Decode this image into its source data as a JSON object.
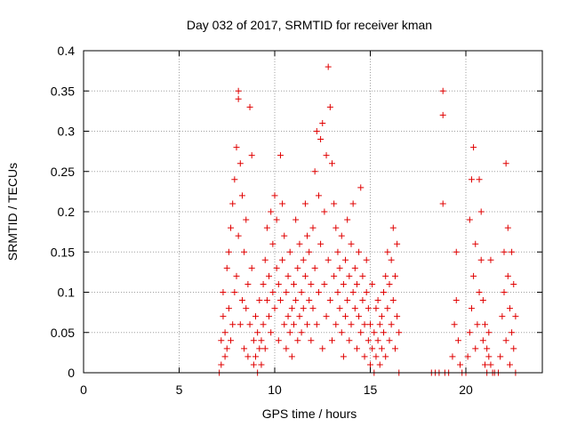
{
  "chart_data": {
    "type": "scatter",
    "title": "Day 032 of 2017, SRMTID for receiver kman",
    "xlabel": "GPS time / hours",
    "ylabel": "SRMTID / TECUs",
    "xlim": [
      0,
      24
    ],
    "ylim": [
      0,
      0.4
    ],
    "xticks": [
      0,
      5,
      10,
      15,
      20
    ],
    "xtick_labels": [
      "0",
      "5",
      "10",
      "15",
      "20"
    ],
    "yticks": [
      0,
      0.05,
      0.1,
      0.15,
      0.2,
      0.25,
      0.3,
      0.35,
      0.4
    ],
    "ytick_labels": [
      "0",
      "0.05",
      "0.1",
      "0.15",
      "0.2",
      "0.25",
      "0.3",
      "0.35",
      "0.4"
    ],
    "grid": true,
    "marker": "+",
    "color": "#e00000",
    "series": [
      {
        "name": "SRMTID",
        "points": [
          [
            7.1,
            0.0
          ],
          [
            7.2,
            0.01
          ],
          [
            7.2,
            0.04
          ],
          [
            7.3,
            0.07
          ],
          [
            7.3,
            0.1
          ],
          [
            7.4,
            0.02
          ],
          [
            7.4,
            0.05
          ],
          [
            7.5,
            0.13
          ],
          [
            7.5,
            0.03
          ],
          [
            7.6,
            0.08
          ],
          [
            7.6,
            0.15
          ],
          [
            7.7,
            0.18
          ],
          [
            7.7,
            0.04
          ],
          [
            7.8,
            0.21
          ],
          [
            7.8,
            0.06
          ],
          [
            7.9,
            0.24
          ],
          [
            7.9,
            0.1
          ],
          [
            8.0,
            0.28
          ],
          [
            8.0,
            0.12
          ],
          [
            8.1,
            0.35
          ],
          [
            8.1,
            0.34
          ],
          [
            8.1,
            0.17
          ],
          [
            8.2,
            0.26
          ],
          [
            8.2,
            0.06
          ],
          [
            8.3,
            0.22
          ],
          [
            8.3,
            0.09
          ],
          [
            8.4,
            0.15
          ],
          [
            8.4,
            0.03
          ],
          [
            8.5,
            0.19
          ],
          [
            8.5,
            0.08
          ],
          [
            8.6,
            0.11
          ],
          [
            8.6,
            0.02
          ],
          [
            8.7,
            0.33
          ],
          [
            8.7,
            0.06
          ],
          [
            8.8,
            0.27
          ],
          [
            8.8,
            0.13
          ],
          [
            8.9,
            0.04
          ],
          [
            8.9,
            0.01
          ],
          [
            9.0,
            0.02
          ],
          [
            9.0,
            0.07
          ],
          [
            9.1,
            0.0
          ],
          [
            9.1,
            0.05
          ],
          [
            9.2,
            0.03
          ],
          [
            9.2,
            0.09
          ],
          [
            9.3,
            0.01
          ],
          [
            9.3,
            0.04
          ],
          [
            9.4,
            0.06
          ],
          [
            9.4,
            0.11
          ],
          [
            9.5,
            0.14
          ],
          [
            9.5,
            0.03
          ],
          [
            9.6,
            0.09
          ],
          [
            9.6,
            0.18
          ],
          [
            9.7,
            0.07
          ],
          [
            9.7,
            0.12
          ],
          [
            9.8,
            0.2
          ],
          [
            9.8,
            0.05
          ],
          [
            9.9,
            0.1
          ],
          [
            9.9,
            0.16
          ],
          [
            10.0,
            0.22
          ],
          [
            10.0,
            0.08
          ],
          [
            10.1,
            0.13
          ],
          [
            10.1,
            0.19
          ],
          [
            10.2,
            0.04
          ],
          [
            10.2,
            0.11
          ],
          [
            10.3,
            0.27
          ],
          [
            10.3,
            0.09
          ],
          [
            10.4,
            0.21
          ],
          [
            10.4,
            0.14
          ],
          [
            10.5,
            0.06
          ],
          [
            10.5,
            0.17
          ],
          [
            10.6,
            0.1
          ],
          [
            10.6,
            0.03
          ],
          [
            10.7,
            0.12
          ],
          [
            10.7,
            0.07
          ],
          [
            10.8,
            0.05
          ],
          [
            10.8,
            0.15
          ],
          [
            10.9,
            0.08
          ],
          [
            10.9,
            0.02
          ],
          [
            11.0,
            0.11
          ],
          [
            11.0,
            0.06
          ],
          [
            11.1,
            0.19
          ],
          [
            11.1,
            0.09
          ],
          [
            11.2,
            0.04
          ],
          [
            11.2,
            0.13
          ],
          [
            11.3,
            0.07
          ],
          [
            11.3,
            0.16
          ],
          [
            11.4,
            0.1
          ],
          [
            11.4,
            0.05
          ],
          [
            11.5,
            0.14
          ],
          [
            11.5,
            0.08
          ],
          [
            11.6,
            0.21
          ],
          [
            11.6,
            0.12
          ],
          [
            11.7,
            0.06
          ],
          [
            11.7,
            0.17
          ],
          [
            11.8,
            0.09
          ],
          [
            11.8,
            0.15
          ],
          [
            11.9,
            0.11
          ],
          [
            11.9,
            0.04
          ],
          [
            12.0,
            0.08
          ],
          [
            12.0,
            0.18
          ],
          [
            12.1,
            0.25
          ],
          [
            12.1,
            0.13
          ],
          [
            12.2,
            0.3
          ],
          [
            12.2,
            0.06
          ],
          [
            12.3,
            0.22
          ],
          [
            12.3,
            0.1
          ],
          [
            12.4,
            0.29
          ],
          [
            12.4,
            0.16
          ],
          [
            12.5,
            0.31
          ],
          [
            12.5,
            0.03
          ],
          [
            12.6,
            0.2
          ],
          [
            12.6,
            0.11
          ],
          [
            12.7,
            0.27
          ],
          [
            12.7,
            0.07
          ],
          [
            12.8,
            0.38
          ],
          [
            12.8,
            0.14
          ],
          [
            12.9,
            0.33
          ],
          [
            12.9,
            0.09
          ],
          [
            13.0,
            0.26
          ],
          [
            13.0,
            0.04
          ],
          [
            13.1,
            0.21
          ],
          [
            13.1,
            0.12
          ],
          [
            13.2,
            0.18
          ],
          [
            13.2,
            0.06
          ],
          [
            13.3,
            0.15
          ],
          [
            13.3,
            0.1
          ],
          [
            13.4,
            0.08
          ],
          [
            13.4,
            0.13
          ],
          [
            13.5,
            0.05
          ],
          [
            13.5,
            0.17
          ],
          [
            13.6,
            0.11
          ],
          [
            13.6,
            0.02
          ],
          [
            13.7,
            0.07
          ],
          [
            13.7,
            0.14
          ],
          [
            13.8,
            0.19
          ],
          [
            13.8,
            0.09
          ],
          [
            13.9,
            0.04
          ],
          [
            13.9,
            0.12
          ],
          [
            14.0,
            0.16
          ],
          [
            14.0,
            0.06
          ],
          [
            14.1,
            0.1
          ],
          [
            14.1,
            0.21
          ],
          [
            14.2,
            0.08
          ],
          [
            14.2,
            0.13
          ],
          [
            14.3,
            0.03
          ],
          [
            14.3,
            0.11
          ],
          [
            14.4,
            0.07
          ],
          [
            14.4,
            0.15
          ],
          [
            14.5,
            0.23
          ],
          [
            14.5,
            0.05
          ],
          [
            14.6,
            0.12
          ],
          [
            14.6,
            0.09
          ],
          [
            14.7,
            0.02
          ],
          [
            14.7,
            0.06
          ],
          [
            14.8,
            0.1
          ],
          [
            14.8,
            0.14
          ],
          [
            14.9,
            0.04
          ],
          [
            14.9,
            0.08
          ],
          [
            15.0,
            0.01
          ],
          [
            15.0,
            0.06
          ],
          [
            15.1,
            0.11
          ],
          [
            15.1,
            0.03
          ],
          [
            15.2,
            0.0
          ],
          [
            15.2,
            0.05
          ],
          [
            15.3,
            0.08
          ],
          [
            15.3,
            0.02
          ],
          [
            15.4,
            0.04
          ],
          [
            15.4,
            0.09
          ],
          [
            15.5,
            0.06
          ],
          [
            15.5,
            0.01
          ],
          [
            15.6,
            0.03
          ],
          [
            15.6,
            0.07
          ],
          [
            15.7,
            0.1
          ],
          [
            15.7,
            0.05
          ],
          [
            15.8,
            0.12
          ],
          [
            15.8,
            0.02
          ],
          [
            15.9,
            0.08
          ],
          [
            15.9,
            0.15
          ],
          [
            16.0,
            0.04
          ],
          [
            16.0,
            0.11
          ],
          [
            16.1,
            0.06
          ],
          [
            16.1,
            0.14
          ],
          [
            16.2,
            0.09
          ],
          [
            16.2,
            0.18
          ],
          [
            16.3,
            0.03
          ],
          [
            16.3,
            0.12
          ],
          [
            16.4,
            0.07
          ],
          [
            16.4,
            0.16
          ],
          [
            16.5,
            0.0
          ],
          [
            16.5,
            0.05
          ],
          [
            18.2,
            0.0
          ],
          [
            18.4,
            0.0
          ],
          [
            18.6,
            0.0
          ],
          [
            18.8,
            0.35
          ],
          [
            18.8,
            0.32
          ],
          [
            18.8,
            0.21
          ],
          [
            18.9,
            0.0
          ],
          [
            19.1,
            0.0
          ],
          [
            19.3,
            0.02
          ],
          [
            19.4,
            0.06
          ],
          [
            19.5,
            0.09
          ],
          [
            19.5,
            0.15
          ],
          [
            19.6,
            0.04
          ],
          [
            19.7,
            0.01
          ],
          [
            19.8,
            0.0
          ],
          [
            20.0,
            0.0
          ],
          [
            20.1,
            0.02
          ],
          [
            20.2,
            0.05
          ],
          [
            20.2,
            0.19
          ],
          [
            20.3,
            0.24
          ],
          [
            20.3,
            0.08
          ],
          [
            20.4,
            0.28
          ],
          [
            20.4,
            0.12
          ],
          [
            20.5,
            0.03
          ],
          [
            20.5,
            0.16
          ],
          [
            20.6,
            0.06
          ],
          [
            20.7,
            0.24
          ],
          [
            20.7,
            0.1
          ],
          [
            20.8,
            0.2
          ],
          [
            20.8,
            0.14
          ],
          [
            20.9,
            0.04
          ],
          [
            20.9,
            0.09
          ],
          [
            21.0,
            0.01
          ],
          [
            21.0,
            0.06
          ],
          [
            21.1,
            0.0
          ],
          [
            21.1,
            0.03
          ],
          [
            21.2,
            0.02
          ],
          [
            21.2,
            0.05
          ],
          [
            21.3,
            0.01
          ],
          [
            21.3,
            0.14
          ],
          [
            21.4,
            0.0
          ],
          [
            21.5,
            0.0
          ],
          [
            21.7,
            0.0
          ],
          [
            21.8,
            0.02
          ],
          [
            21.9,
            0.07
          ],
          [
            22.0,
            0.1
          ],
          [
            22.0,
            0.15
          ],
          [
            22.1,
            0.26
          ],
          [
            22.1,
            0.04
          ],
          [
            22.2,
            0.12
          ],
          [
            22.2,
            0.18
          ],
          [
            22.3,
            0.08
          ],
          [
            22.3,
            0.01
          ],
          [
            22.4,
            0.15
          ],
          [
            22.4,
            0.05
          ],
          [
            22.5,
            0.11
          ],
          [
            22.5,
            0.03
          ],
          [
            22.6,
            0.0
          ],
          [
            22.6,
            0.07
          ]
        ]
      }
    ]
  }
}
